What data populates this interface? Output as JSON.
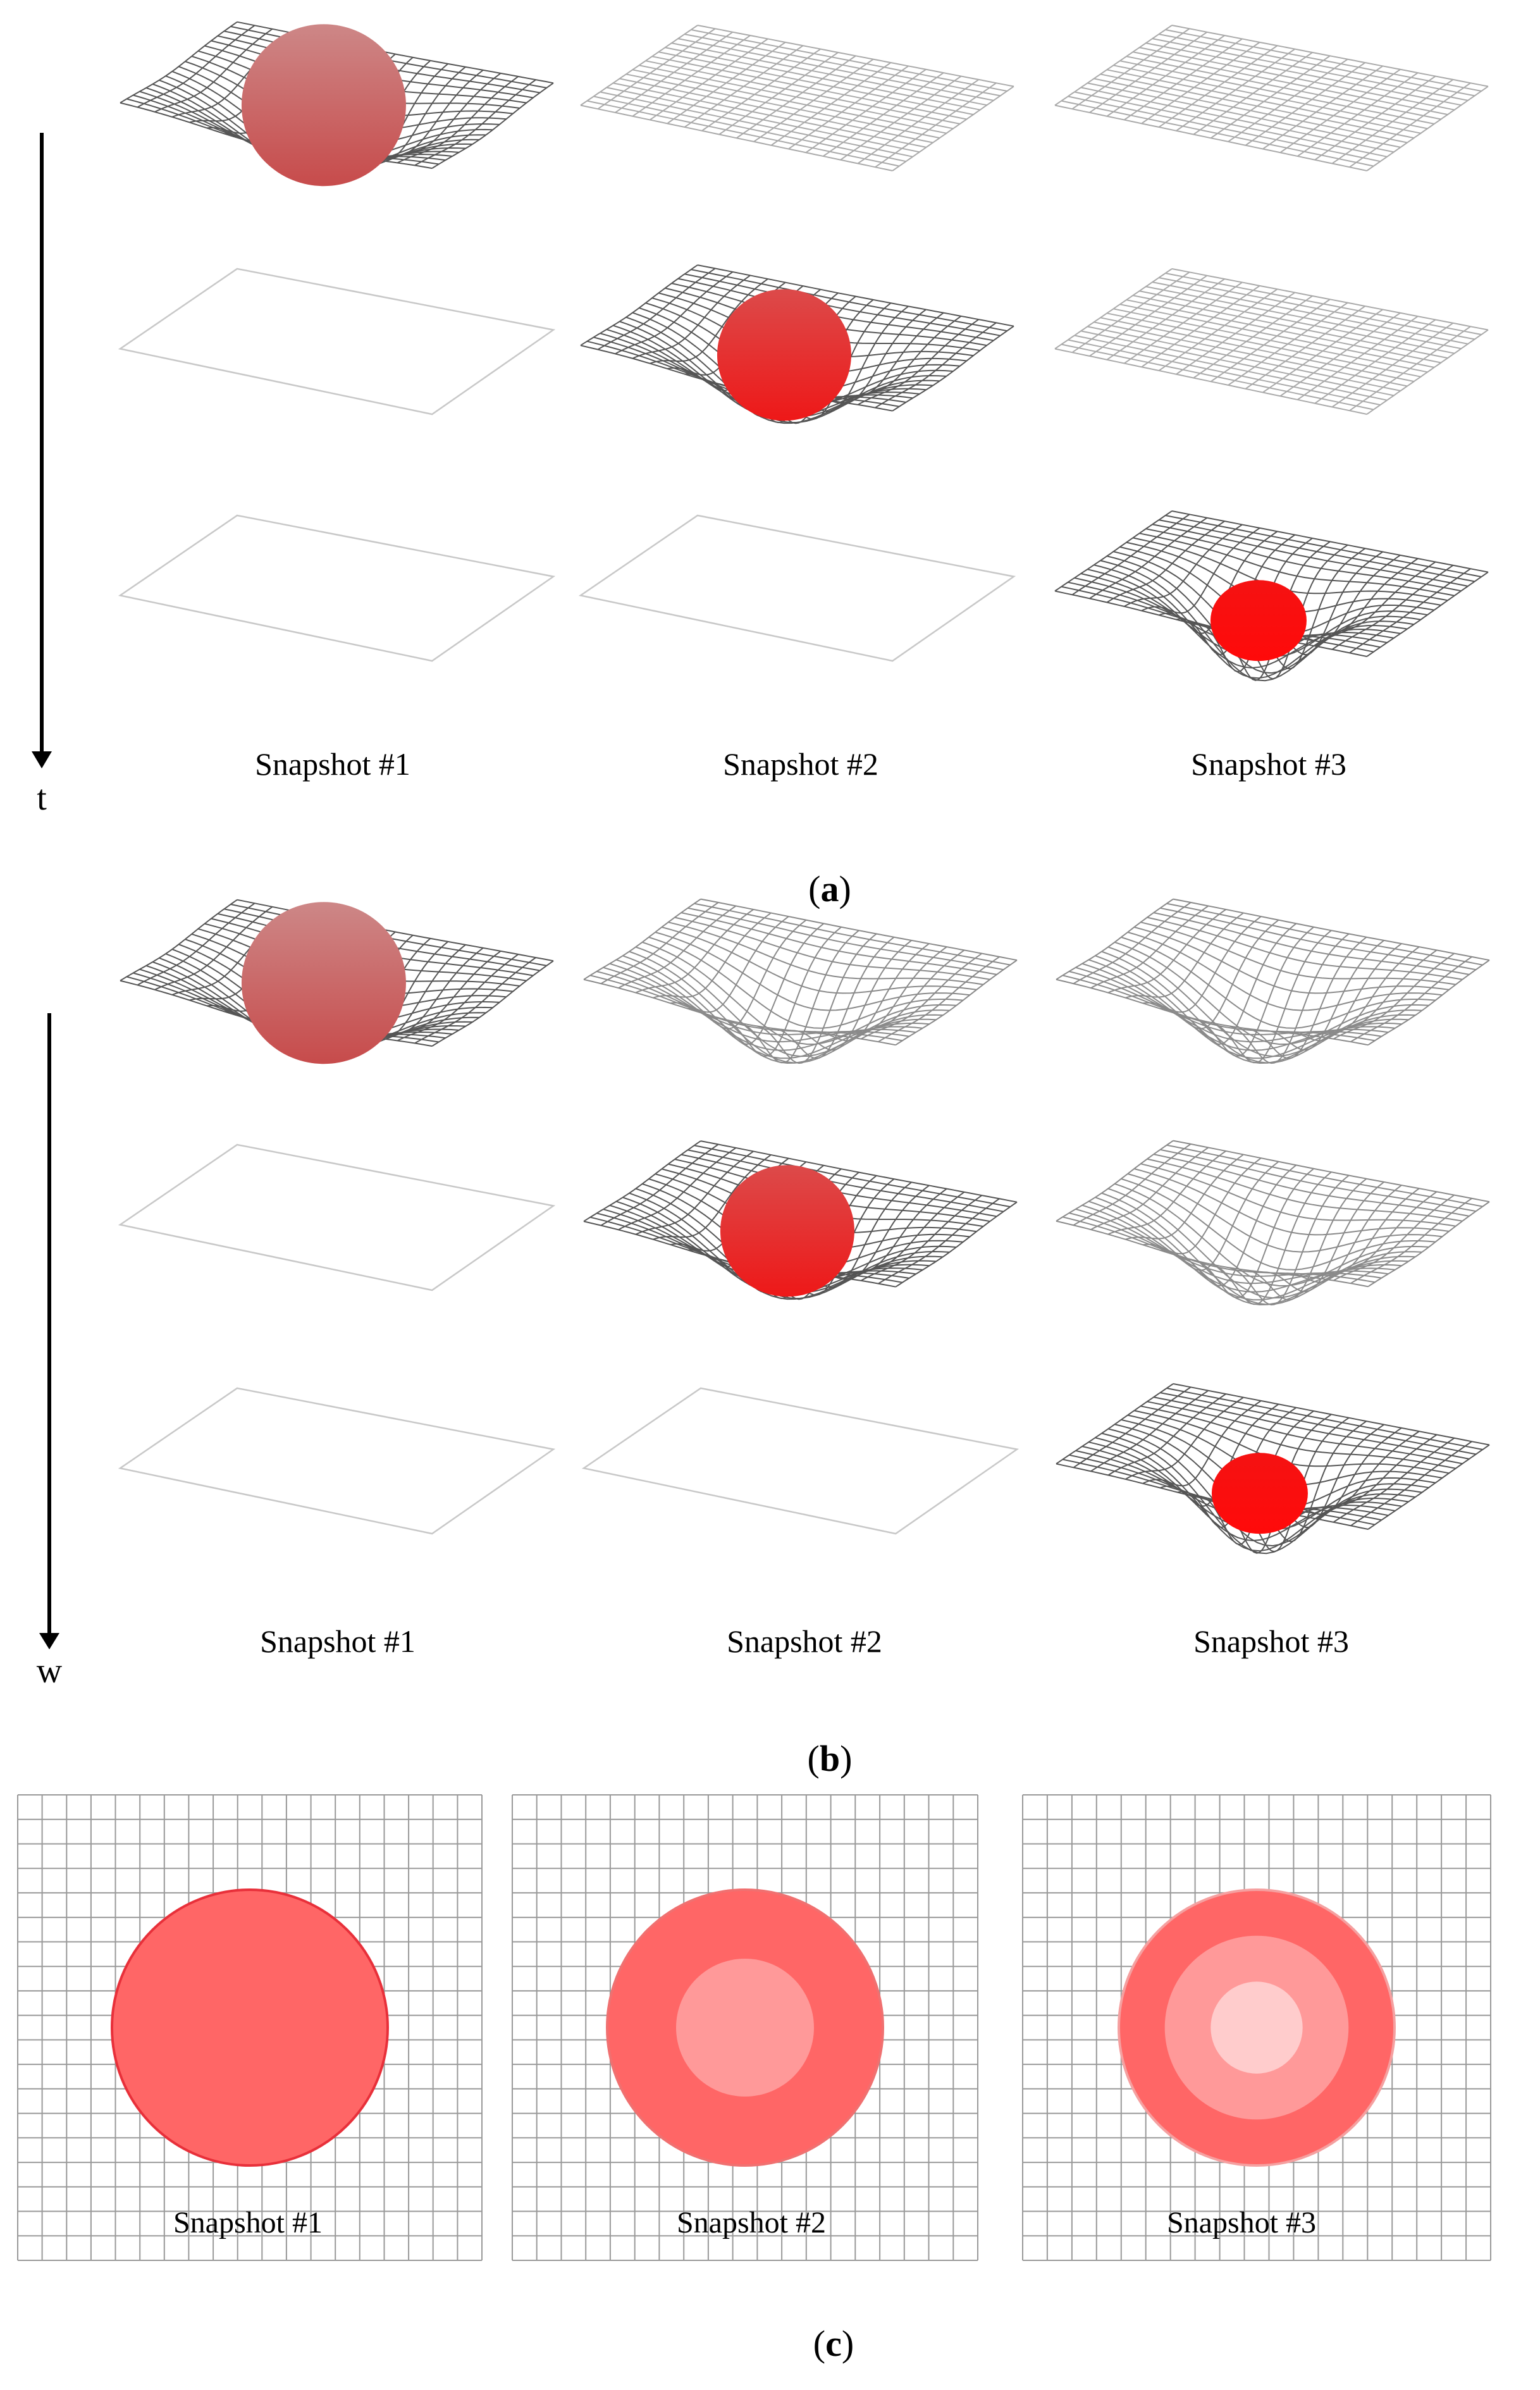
{
  "figure": {
    "panel_a": {
      "label_open": "(",
      "label_letter": "a",
      "label_close": ")",
      "axis_label": "t",
      "columns": [
        "Snapshot #1",
        "Snapshot #2",
        "Snapshot #3"
      ],
      "rows": [
        [
          "deformed_with_ball",
          "flat_grid",
          "flat_grid"
        ],
        [
          "empty_plane",
          "deformed_with_ball",
          "flat_grid"
        ],
        [
          "empty_plane",
          "empty_plane",
          "deformed_with_ball"
        ]
      ]
    },
    "panel_b": {
      "label_open": "(",
      "label_letter": "b",
      "label_close": ")",
      "axis_label": "w",
      "columns": [
        "Snapshot #1",
        "Snapshot #2",
        "Snapshot #3"
      ],
      "rows": [
        [
          "deformed_with_ball",
          "deformed_empty",
          "deformed_empty"
        ],
        [
          "empty_plane",
          "deformed_with_ball",
          "deformed_empty"
        ],
        [
          "empty_plane",
          "empty_plane",
          "deformed_with_ball"
        ]
      ]
    },
    "panel_c": {
      "label_open": "(",
      "label_letter": "c",
      "label_close": ")",
      "snapshots": [
        {
          "label": "Snapshot #1",
          "rings": 1
        },
        {
          "label": "Snapshot #2",
          "rings": 2
        },
        {
          "label": "Snapshot #3",
          "rings": 3
        }
      ]
    },
    "colors": {
      "ball_faded": "#c97a7a",
      "ball_mid": "#e33a3a",
      "ball_bright": "#f50e0e",
      "ring_1": "#ff6666",
      "ring_2": "#ff9999",
      "ring_3": "#ffcccc",
      "grid_line": "#999999",
      "axis": "#000000"
    }
  }
}
